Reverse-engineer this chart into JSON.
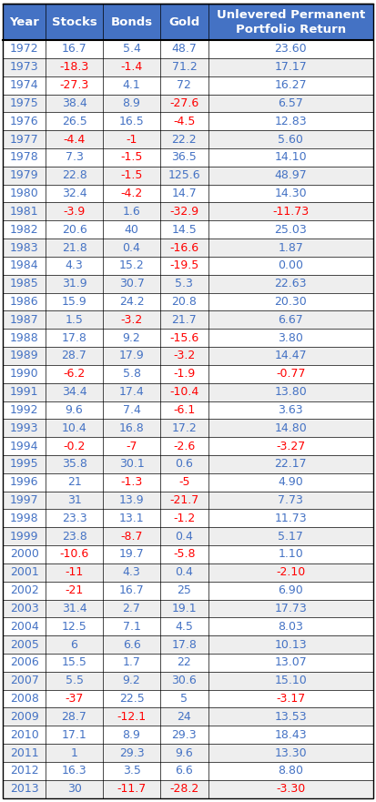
{
  "headers": [
    "Year",
    "Stocks",
    "Bonds",
    "Gold",
    "Unlevered Permanent\nPortfolio Return"
  ],
  "rows": [
    [
      1972,
      "16.7",
      "5.4",
      "48.7",
      "23.60"
    ],
    [
      1973,
      "-18.3",
      "-1.4",
      "71.2",
      "17.17"
    ],
    [
      1974,
      "-27.3",
      "4.1",
      "72",
      "16.27"
    ],
    [
      1975,
      "38.4",
      "8.9",
      "-27.6",
      "6.57"
    ],
    [
      1976,
      "26.5",
      "16.5",
      "-4.5",
      "12.83"
    ],
    [
      1977,
      "-4.4",
      "-1",
      "22.2",
      "5.60"
    ],
    [
      1978,
      "7.3",
      "-1.5",
      "36.5",
      "14.10"
    ],
    [
      1979,
      "22.8",
      "-1.5",
      "125.6",
      "48.97"
    ],
    [
      1980,
      "32.4",
      "-4.2",
      "14.7",
      "14.30"
    ],
    [
      1981,
      "-3.9",
      "1.6",
      "-32.9",
      "-11.73"
    ],
    [
      1982,
      "20.6",
      "40",
      "14.5",
      "25.03"
    ],
    [
      1983,
      "21.8",
      "0.4",
      "-16.6",
      "1.87"
    ],
    [
      1984,
      "4.3",
      "15.2",
      "-19.5",
      "0.00"
    ],
    [
      1985,
      "31.9",
      "30.7",
      "5.3",
      "22.63"
    ],
    [
      1986,
      "15.9",
      "24.2",
      "20.8",
      "20.30"
    ],
    [
      1987,
      "1.5",
      "-3.2",
      "21.7",
      "6.67"
    ],
    [
      1988,
      "17.8",
      "9.2",
      "-15.6",
      "3.80"
    ],
    [
      1989,
      "28.7",
      "17.9",
      "-3.2",
      "14.47"
    ],
    [
      1990,
      "-6.2",
      "5.8",
      "-1.9",
      "-0.77"
    ],
    [
      1991,
      "34.4",
      "17.4",
      "-10.4",
      "13.80"
    ],
    [
      1992,
      "9.6",
      "7.4",
      "-6.1",
      "3.63"
    ],
    [
      1993,
      "10.4",
      "16.8",
      "17.2",
      "14.80"
    ],
    [
      1994,
      "-0.2",
      "-7",
      "-2.6",
      "-3.27"
    ],
    [
      1995,
      "35.8",
      "30.1",
      "0.6",
      "22.17"
    ],
    [
      1996,
      "21",
      "-1.3",
      "-5",
      "4.90"
    ],
    [
      1997,
      "31",
      "13.9",
      "-21.7",
      "7.73"
    ],
    [
      1998,
      "23.3",
      "13.1",
      "-1.2",
      "11.73"
    ],
    [
      1999,
      "23.8",
      "-8.7",
      "0.4",
      "5.17"
    ],
    [
      2000,
      "-10.6",
      "19.7",
      "-5.8",
      "1.10"
    ],
    [
      2001,
      "-11",
      "4.3",
      "0.4",
      "-2.10"
    ],
    [
      2002,
      "-21",
      "16.7",
      "25",
      "6.90"
    ],
    [
      2003,
      "31.4",
      "2.7",
      "19.1",
      "17.73"
    ],
    [
      2004,
      "12.5",
      "7.1",
      "4.5",
      "8.03"
    ],
    [
      2005,
      "6",
      "6.6",
      "17.8",
      "10.13"
    ],
    [
      2006,
      "15.5",
      "1.7",
      "22",
      "13.07"
    ],
    [
      2007,
      "5.5",
      "9.2",
      "30.6",
      "15.10"
    ],
    [
      2008,
      "-37",
      "22.5",
      "5",
      "-3.17"
    ],
    [
      2009,
      "28.7",
      "-12.1",
      "24",
      "13.53"
    ],
    [
      2010,
      "17.1",
      "8.9",
      "29.3",
      "18.43"
    ],
    [
      2011,
      "1",
      "29.3",
      "9.6",
      "13.30"
    ],
    [
      2012,
      "16.3",
      "3.5",
      "6.6",
      "8.80"
    ],
    [
      2013,
      "30",
      "-11.7",
      "-28.2",
      "-3.30"
    ]
  ],
  "col_props": [
    0.115,
    0.155,
    0.155,
    0.13,
    0.445
  ],
  "header_bg_color": "#4472C4",
  "header_text_color": "#FFFFFF",
  "row_colors": [
    "#FFFFFF",
    "#EEEEEE"
  ],
  "positive_color": "#4472C4",
  "negative_color": "#FF0000",
  "year_color": "#4472C4",
  "grid_color": "#000000",
  "font_size": 9.0,
  "header_font_size": 9.5,
  "fig_width": 4.13,
  "fig_height": 8.81,
  "dpi": 100
}
